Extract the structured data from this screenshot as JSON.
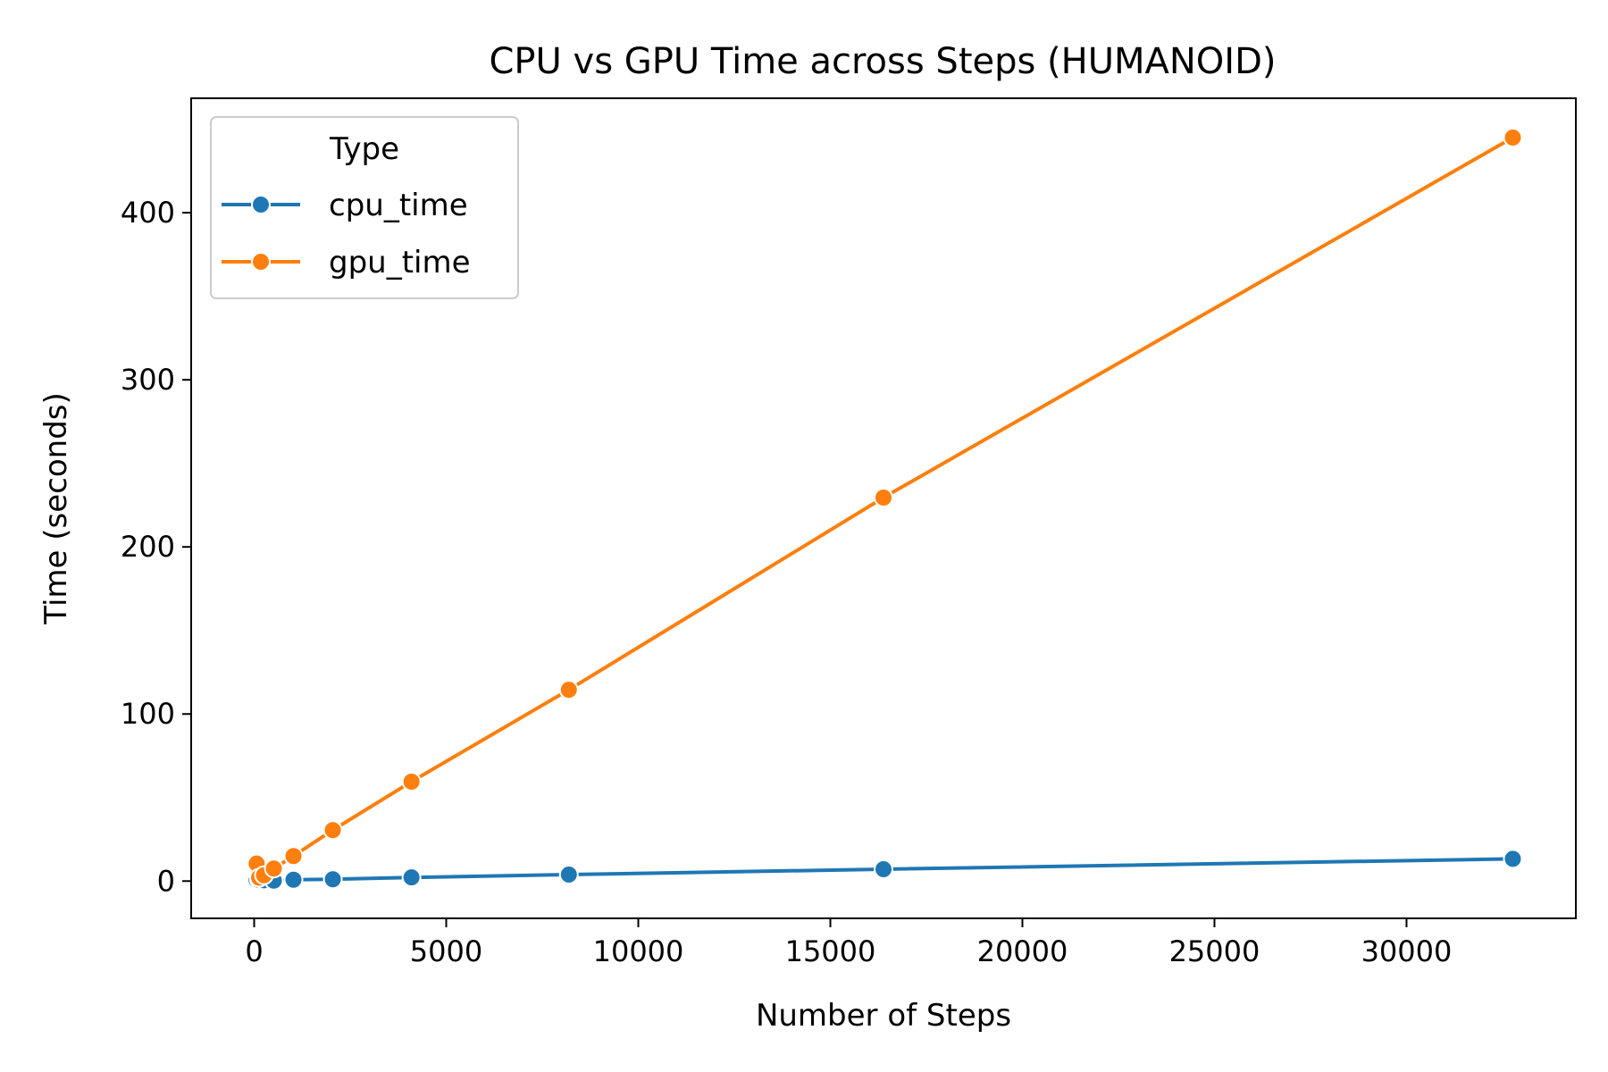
{
  "chart_data": {
    "type": "line",
    "title": "CPU vs GPU Time across Steps (HUMANOID)",
    "xlabel": "Number of Steps",
    "ylabel": "Time (seconds)",
    "xlim": [
      -1640,
      34408
    ],
    "ylim": [
      -22.3,
      468.5
    ],
    "xticks": [
      0,
      5000,
      10000,
      15000,
      20000,
      25000,
      30000
    ],
    "xtick_labels": [
      "0",
      "5000",
      "10000",
      "15000",
      "20000",
      "25000",
      "30000"
    ],
    "yticks": [
      0,
      100,
      200,
      300,
      400
    ],
    "ytick_labels": [
      "0",
      "100",
      "200",
      "300",
      "400"
    ],
    "grid": false,
    "legend": {
      "title": "Type",
      "position": "top-left"
    },
    "x": [
      64,
      128,
      256,
      512,
      1024,
      2048,
      4096,
      8192,
      16384,
      32768
    ],
    "series": [
      {
        "name": "cpu_time",
        "color": "#1f77b4",
        "values": [
          0.5,
          0.6,
          0.5,
          0.3,
          0.8,
          1.1,
          2.2,
          3.9,
          7.1,
          13.3
        ]
      },
      {
        "name": "gpu_time",
        "color": "#ff7f0e",
        "values": [
          10.5,
          2.0,
          3.5,
          7.5,
          15.0,
          30.5,
          59.5,
          114.5,
          229.5,
          445.0
        ]
      }
    ]
  }
}
